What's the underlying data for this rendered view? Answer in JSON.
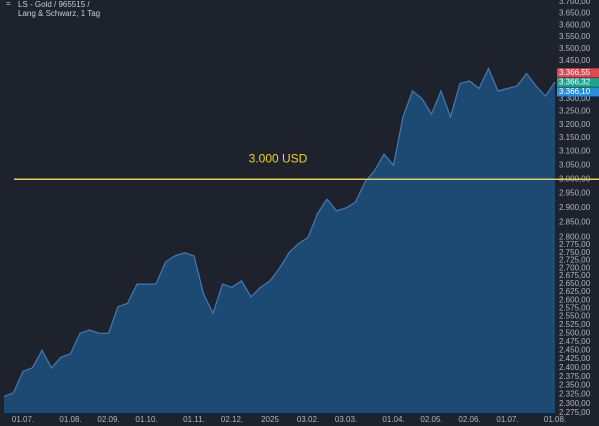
{
  "chart_data": {
    "type": "area",
    "title": "LS - Gold / 965515 /",
    "subtitle": "Lang & Schwarz, 1 Tag",
    "color": "#1d4a72",
    "line_color": "#3b7dbd",
    "grid": false,
    "log_scale": true,
    "categories": [
      null,
      null,
      "01.07.",
      null,
      null,
      null,
      null,
      "01.08.",
      null,
      null,
      null,
      "02.09.",
      null,
      null,
      null,
      "01.10.",
      null,
      null,
      null,
      null,
      "01.11.",
      null,
      null,
      null,
      "02.12.",
      null,
      null,
      null,
      "2025",
      null,
      null,
      null,
      "03.02.",
      null,
      null,
      null,
      "03.03.",
      null,
      null,
      null,
      null,
      "01.04.",
      null,
      null,
      null,
      "02.05.",
      null,
      null,
      null,
      "02.06.",
      null,
      null,
      null,
      "01.07.",
      null,
      null,
      null,
      null,
      "01.08."
    ],
    "values": [
      2320,
      2330,
      2390,
      2400,
      2450,
      2400,
      2430,
      2440,
      2500,
      2510,
      2500,
      2500,
      2580,
      2590,
      2650,
      2650,
      2650,
      2720,
      2740,
      2750,
      2740,
      2620,
      2560,
      2650,
      2640,
      2660,
      2610,
      2640,
      2660,
      2700,
      2750,
      2780,
      2800,
      2880,
      2930,
      2890,
      2900,
      2920,
      2990,
      3030,
      3090,
      3050,
      3230,
      3330,
      3300,
      3240,
      3330,
      3230,
      3360,
      3370,
      3340,
      3420,
      3330,
      3340,
      3350,
      3400,
      3350,
      3310,
      3366
    ],
    "ylim": [
      2275,
      3700
    ],
    "yticks": [
      {
        "value": 3700,
        "label": "3.700,00"
      },
      {
        "value": 3650,
        "label": "3.650,00"
      },
      {
        "value": 3600,
        "label": "3.600,00"
      },
      {
        "value": 3550,
        "label": "3.550,00"
      },
      {
        "value": 3500,
        "label": "3.500,00"
      },
      {
        "value": 3450,
        "label": "3.450,00"
      },
      {
        "value": 3300,
        "label": "3.300,00"
      },
      {
        "value": 3250,
        "label": "3.250,00"
      },
      {
        "value": 3200,
        "label": "3.200,00"
      },
      {
        "value": 3150,
        "label": "3.150,00"
      },
      {
        "value": 3100,
        "label": "3.100,00"
      },
      {
        "value": 3050,
        "label": "3.050,00"
      },
      {
        "value": 3000,
        "label": "3.000,00"
      },
      {
        "value": 2950,
        "label": "2.950,00"
      },
      {
        "value": 2900,
        "label": "2.900,00"
      },
      {
        "value": 2850,
        "label": "2.850,00"
      },
      {
        "value": 2800,
        "label": "2.800,00"
      },
      {
        "value": 2775,
        "label": "2.775,00"
      },
      {
        "value": 2750,
        "label": "2.750,00"
      },
      {
        "value": 2725,
        "label": "2.725,00"
      },
      {
        "value": 2700,
        "label": "2.700,00"
      },
      {
        "value": 2675,
        "label": "2.675,00"
      },
      {
        "value": 2650,
        "label": "2.650,00"
      },
      {
        "value": 2625,
        "label": "2.625,00"
      },
      {
        "value": 2600,
        "label": "2.600,00"
      },
      {
        "value": 2575,
        "label": "2.575,00"
      },
      {
        "value": 2550,
        "label": "2.550,00"
      },
      {
        "value": 2525,
        "label": "2.525,00"
      },
      {
        "value": 2500,
        "label": "2.500,00"
      },
      {
        "value": 2475,
        "label": "2.475,00"
      },
      {
        "value": 2450,
        "label": "2.450,00"
      },
      {
        "value": 2425,
        "label": "2.425,00"
      },
      {
        "value": 2400,
        "label": "2.400,00"
      },
      {
        "value": 2375,
        "label": "2.375,00"
      },
      {
        "value": 2350,
        "label": "2.350,00"
      },
      {
        "value": 2325,
        "label": "2.325,00"
      },
      {
        "value": 2300,
        "label": "2.300,00"
      },
      {
        "value": 2275,
        "label": "2.275,00"
      }
    ],
    "hlines": [
      {
        "value": 3000,
        "label": "3.000 USD",
        "color": "#f2d21b"
      }
    ],
    "price_labels": [
      {
        "value": 3366.55,
        "label": "3.366,55",
        "color": "#e0484f"
      },
      {
        "value": 3366.32,
        "label": "3.366,32",
        "color": "#1fa38f"
      },
      {
        "value": 3366.1,
        "label": "3.366,10",
        "color": "#2a8ee0"
      }
    ]
  }
}
